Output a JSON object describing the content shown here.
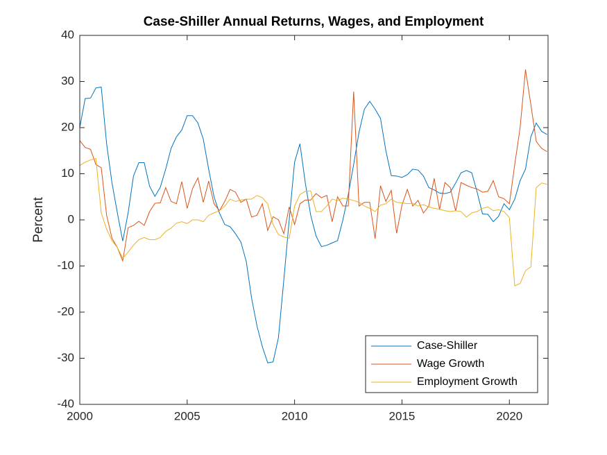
{
  "chart_data": {
    "type": "line",
    "title": "Case-Shiller Annual Returns, Wages, and Employment",
    "ylabel": "Percent",
    "x": [
      2000,
      2000.25,
      2000.5,
      2000.75,
      2001,
      2001.25,
      2001.5,
      2001.75,
      2002,
      2002.25,
      2002.5,
      2002.75,
      2003,
      2003.25,
      2003.5,
      2003.75,
      2004,
      2004.25,
      2004.5,
      2004.75,
      2005,
      2005.25,
      2005.5,
      2005.75,
      2006,
      2006.25,
      2006.5,
      2006.75,
      2007,
      2007.25,
      2007.5,
      2007.75,
      2008,
      2008.25,
      2008.5,
      2008.75,
      2009,
      2009.25,
      2009.5,
      2009.75,
      2010,
      2010.25,
      2010.5,
      2010.75,
      2011,
      2011.25,
      2011.5,
      2011.75,
      2012,
      2012.25,
      2012.5,
      2012.75,
      2013,
      2013.25,
      2013.5,
      2013.75,
      2014,
      2014.25,
      2014.5,
      2014.75,
      2015,
      2015.25,
      2015.5,
      2015.75,
      2016,
      2016.25,
      2016.5,
      2016.75,
      2017,
      2017.25,
      2017.5,
      2017.75,
      2018,
      2018.25,
      2018.5,
      2018.75,
      2019,
      2019.25,
      2019.5,
      2019.75,
      2020,
      2020.25,
      2020.5,
      2020.75,
      2021,
      2021.25,
      2021.5,
      2021.75
    ],
    "series": [
      {
        "name": "Case-Shiller",
        "color": "#0072bd",
        "values": [
          20,
          26.3,
          26.4,
          28.6,
          28.8,
          16.5,
          8,
          1.5,
          -4.6,
          1.5,
          9.5,
          12.4,
          12.4,
          7.3,
          5.1,
          7.1,
          11,
          15.5,
          18,
          19.5,
          22.6,
          22.6,
          21,
          17.5,
          11,
          5,
          1.5,
          -1,
          -1.5,
          -3,
          -4.8,
          -9,
          -17,
          -23,
          -27.5,
          -31,
          -30.8,
          -25.5,
          -13,
          0,
          12.5,
          16.5,
          8,
          1,
          -3.5,
          -5.8,
          -5.5,
          -5,
          -4.5,
          0,
          5.5,
          12,
          19,
          24,
          25.7,
          24,
          22,
          15,
          9.6,
          9.5,
          9.2,
          9.8,
          11,
          10.8,
          9.5,
          7,
          6.5,
          5.8,
          5.7,
          6,
          8,
          10.2,
          10.7,
          10.2,
          6,
          1.3,
          1.2,
          -0.4,
          0.8,
          3.5,
          2.2,
          4.5,
          8.5,
          11,
          18,
          21,
          19.2,
          18.5
        ]
      },
      {
        "name": "Wage Growth",
        "color": "#d95319",
        "values": [
          17.2,
          15.7,
          15.3,
          12,
          11.3,
          1,
          -4,
          -6,
          -8.9,
          -1.7,
          -1.2,
          -0.3,
          -1.2,
          1.8,
          3.6,
          3.7,
          7,
          4,
          3.5,
          8.3,
          2.5,
          6.8,
          9.1,
          3.8,
          8.4,
          3.5,
          2,
          4,
          6.6,
          6,
          3.8,
          4.5,
          0.6,
          1,
          3.5,
          -2.3,
          0.7,
          0,
          -3,
          2.8,
          -1,
          3.5,
          4.3,
          4.3,
          5.7,
          4.8,
          5.3,
          -0.4,
          5,
          3,
          3,
          27.8,
          3,
          3.8,
          3.8,
          -4.1,
          7.4,
          4,
          6.4,
          -2.9,
          3.2,
          6.6,
          3,
          4.2,
          1.5,
          3,
          9,
          2.2,
          8.1,
          7,
          1.9,
          8.1,
          7.5,
          7,
          6.7,
          6,
          6.2,
          8.5,
          5,
          4.6,
          3.5,
          12,
          20,
          32.6,
          25,
          17,
          15.5,
          14.8
        ]
      },
      {
        "name": "Employment Growth",
        "color": "#edb120",
        "values": [
          11.8,
          12.5,
          13,
          13.3,
          1.5,
          -2,
          -4.5,
          -6,
          -8.3,
          -7,
          -5.5,
          -4.3,
          -3.8,
          -4.3,
          -4.3,
          -3.8,
          -2.5,
          -1.8,
          -0.7,
          -0.4,
          -0.8,
          0,
          0,
          -0.4,
          1,
          1.5,
          2,
          3,
          4.5,
          4,
          4.3,
          4.5,
          4.5,
          5.3,
          4.8,
          3.5,
          -1,
          -3.2,
          -3.7,
          -4,
          3,
          5.5,
          6.2,
          6.3,
          1.8,
          1.8,
          3,
          4.5,
          4.2,
          4.7,
          4.5,
          4.2,
          3.8,
          3,
          2.5,
          1.8,
          3.2,
          3.5,
          4.5,
          3.8,
          3.7,
          3.5,
          3.6,
          3,
          3.3,
          2.8,
          2.5,
          2.3,
          2,
          1.8,
          2,
          1.8,
          0.6,
          1.5,
          1.8,
          2.5,
          2.8,
          2,
          2.2,
          1.8,
          0.5,
          -14.3,
          -13.8,
          -11,
          -10.2,
          7,
          8,
          7.7
        ]
      }
    ],
    "xlim": [
      2000,
      2021.8
    ],
    "xticks": [
      2000,
      2005,
      2010,
      2015,
      2020
    ],
    "ylim": [
      -40,
      40
    ],
    "yticks": [
      -40,
      -30,
      -20,
      -10,
      0,
      10,
      20,
      30,
      40
    ],
    "legend": "southeast"
  }
}
